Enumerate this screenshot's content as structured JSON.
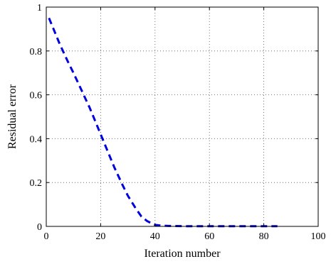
{
  "chart_data": {
    "type": "line",
    "title": "",
    "xlabel": "Iteration number",
    "ylabel": "Residual error",
    "xlim": [
      0,
      100
    ],
    "ylim": [
      0,
      1
    ],
    "xticks": [
      0,
      20,
      40,
      60,
      80,
      100
    ],
    "yticks": [
      0,
      0.2,
      0.4,
      0.6,
      0.8,
      1
    ],
    "xtick_labels": [
      "0",
      "20",
      "40",
      "60",
      "80",
      "100"
    ],
    "ytick_labels": [
      "0",
      "0.2",
      "0.4",
      "0.6",
      "0.8",
      "1"
    ],
    "grid": true,
    "series": [
      {
        "color": "#0000dd",
        "style": "dashed",
        "x": [
          1,
          3,
          5,
          8,
          10,
          13,
          16,
          18,
          20,
          22,
          25,
          28,
          30,
          33,
          35,
          37,
          39,
          40,
          42,
          45,
          50,
          55,
          60,
          65,
          70,
          75,
          80,
          85
        ],
        "y": [
          0.95,
          0.89,
          0.83,
          0.75,
          0.7,
          0.62,
          0.54,
          0.48,
          0.42,
          0.36,
          0.27,
          0.19,
          0.14,
          0.08,
          0.045,
          0.025,
          0.012,
          0.007,
          0.004,
          0.002,
          0.001,
          0.001,
          0.001,
          0.001,
          0.001,
          0.001,
          0.001,
          0.001
        ]
      }
    ]
  }
}
